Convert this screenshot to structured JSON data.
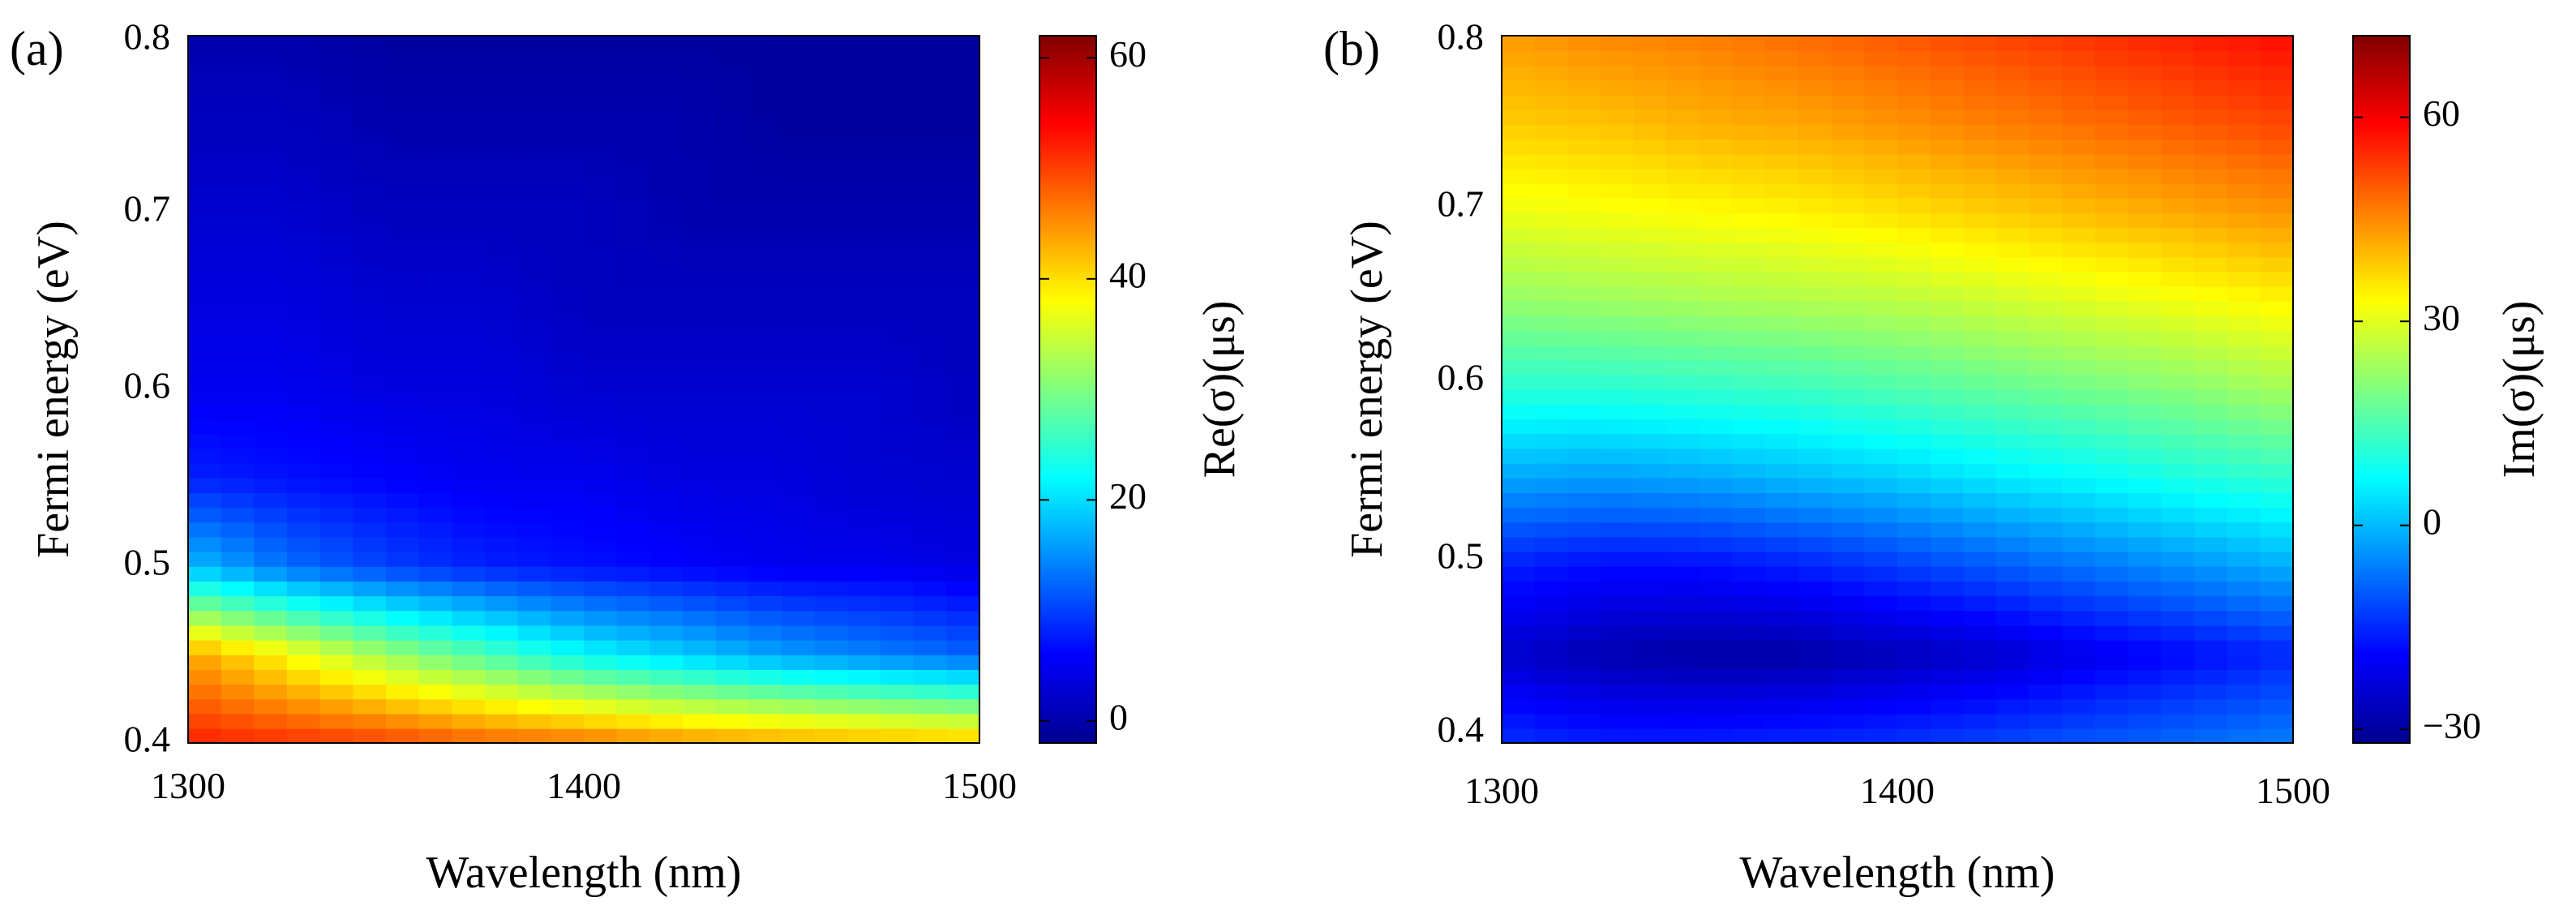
{
  "chart_data": [
    {
      "type": "heatmap",
      "panel_label": "(a)",
      "xlabel": "Wavelength (nm)",
      "ylabel": "Fermi energy (eV)",
      "colorbar_label": "Re(σ)(μs)",
      "xlim": [
        1300,
        1500
      ],
      "ylim": [
        0.4,
        0.8
      ],
      "x_ticks": [
        1300,
        1400,
        1500
      ],
      "x_tick_labels": [
        "1300",
        "1400",
        "1500"
      ],
      "y_ticks": [
        0.4,
        0.5,
        0.6,
        0.7,
        0.8
      ],
      "y_tick_labels": [
        "0.4",
        "0.5",
        "0.6",
        "0.7",
        "0.8"
      ],
      "clim": [
        -2,
        62
      ],
      "colorbar_ticks": [
        0,
        20,
        40,
        60
      ],
      "colorbar_tick_labels": [
        "0",
        "20",
        "40",
        "60"
      ],
      "colormap": "jet",
      "grid_x": [
        1300,
        1325,
        1350,
        1375,
        1400,
        1425,
        1450,
        1475,
        1500
      ],
      "grid_y": [
        0.4,
        0.45,
        0.5,
        0.55,
        0.6,
        0.65,
        0.7,
        0.75,
        0.8
      ],
      "values": [
        [
          52,
          51,
          50,
          48,
          47,
          45,
          44,
          43,
          42
        ],
        [
          44,
          38,
          32,
          27,
          22,
          19,
          16,
          14,
          12
        ],
        [
          18,
          13,
          10,
          8,
          7,
          6,
          5,
          5,
          4
        ],
        [
          8,
          7,
          6,
          5,
          5,
          4,
          4,
          3,
          3
        ],
        [
          5,
          5,
          4,
          4,
          3,
          3,
          3,
          3,
          2
        ],
        [
          4,
          4,
          3,
          3,
          2,
          2,
          2,
          2,
          2
        ],
        [
          3,
          3,
          2,
          2,
          2,
          1,
          1,
          1,
          1
        ],
        [
          2,
          2,
          1,
          1,
          1,
          1,
          0,
          0,
          0
        ],
        [
          1,
          1,
          0,
          0,
          0,
          0,
          0,
          0,
          0
        ]
      ]
    },
    {
      "type": "heatmap",
      "panel_label": "(b)",
      "xlabel": "Wavelength (nm)",
      "ylabel": "Fermi energy (eV)",
      "colorbar_label": "Im(σ)(μs)",
      "xlim": [
        1300,
        1500
      ],
      "ylim": [
        0.4,
        0.8
      ],
      "x_ticks": [
        1300,
        1400,
        1500
      ],
      "x_tick_labels": [
        "1300",
        "1400",
        "1500"
      ],
      "y_ticks": [
        0.4,
        0.5,
        0.6,
        0.7,
        0.8
      ],
      "y_tick_labels": [
        "0.4",
        "0.5",
        "0.6",
        "0.7",
        "0.8"
      ],
      "clim": [
        -32,
        72
      ],
      "colorbar_ticks": [
        -30,
        0,
        30,
        60
      ],
      "colorbar_tick_labels": [
        "−30",
        "0",
        "30",
        "60"
      ],
      "colormap": "jet",
      "grid_x": [
        1300,
        1325,
        1350,
        1375,
        1400,
        1425,
        1450,
        1475,
        1500
      ],
      "grid_y": [
        0.4,
        0.45,
        0.5,
        0.55,
        0.6,
        0.65,
        0.7,
        0.75,
        0.8
      ],
      "values": [
        [
          -14,
          -16,
          -16,
          -15,
          -14,
          -12,
          -10,
          -8,
          -6
        ],
        [
          -24,
          -27,
          -28,
          -28,
          -26,
          -24,
          -21,
          -18,
          -15
        ],
        [
          -16,
          -18,
          -18,
          -16,
          -13,
          -10,
          -7,
          -4,
          -1
        ],
        [
          -2,
          -3,
          -2,
          0,
          2,
          5,
          7,
          10,
          12
        ],
        [
          11,
          11,
          12,
          13,
          15,
          17,
          19,
          21,
          24
        ],
        [
          22,
          23,
          24,
          25,
          26,
          28,
          30,
          32,
          34
        ],
        [
          31,
          32,
          33,
          34,
          36,
          38,
          40,
          42,
          44
        ],
        [
          38,
          39,
          41,
          42,
          44,
          46,
          48,
          50,
          52
        ],
        [
          43,
          45,
          46,
          48,
          50,
          52,
          54,
          56,
          58
        ]
      ]
    }
  ]
}
